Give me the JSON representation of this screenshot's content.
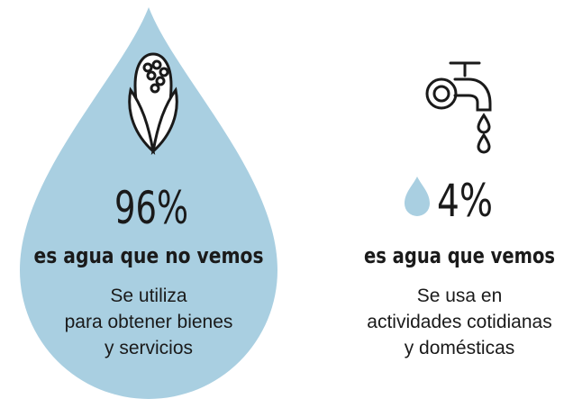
{
  "left": {
    "percent": "96%",
    "heading": "es agua que no vemos",
    "description": [
      "Se utiliza",
      "para obtener bienes",
      "y servicios"
    ]
  },
  "right": {
    "percent": "4%",
    "heading": "es agua que vemos",
    "description": [
      "Se usa en",
      "actividades cotidianas",
      "y domésticas"
    ]
  }
}
